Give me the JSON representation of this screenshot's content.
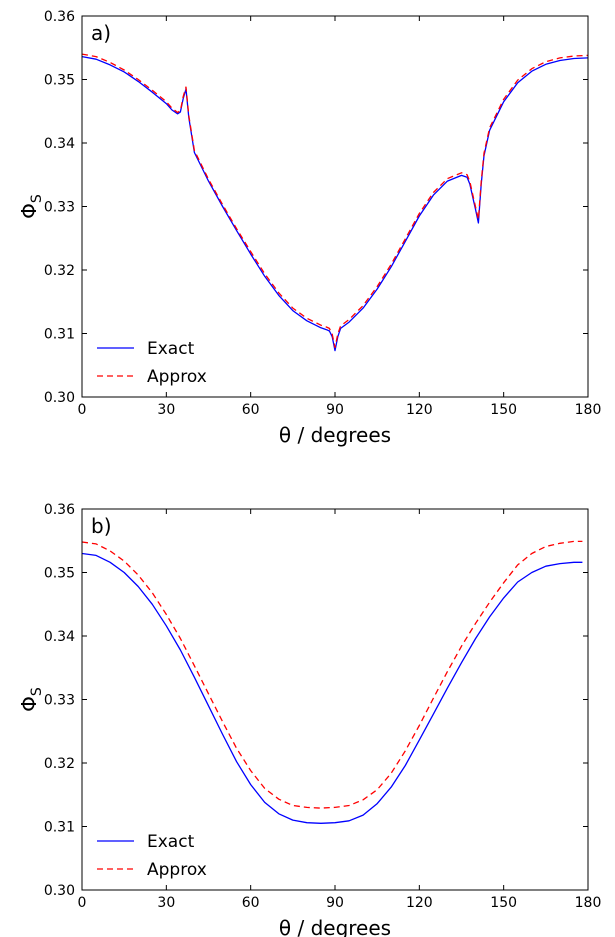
{
  "colors": {
    "exact": "#0000ff",
    "approx": "#ff0000",
    "axes": "#000000",
    "background": "#ffffff"
  },
  "chart_data": [
    {
      "type": "line",
      "panel_label": "a)",
      "xlabel": "θ / degrees",
      "ylabel": "ΦS",
      "xlim": [
        0,
        180
      ],
      "ylim": [
        0.3,
        0.36
      ],
      "xticks": [
        0,
        30,
        60,
        90,
        120,
        150,
        180
      ],
      "xtick_labels": [
        "0",
        "30",
        "60",
        "90",
        "120",
        "150",
        "180"
      ],
      "yticks": [
        0.3,
        0.31,
        0.32,
        0.33,
        0.34,
        0.35,
        0.36
      ],
      "ytick_labels": [
        "0.30",
        "0.31",
        "0.32",
        "0.33",
        "0.34",
        "0.35",
        "0.36"
      ],
      "grid": false,
      "legend_position": "bottom-left",
      "series": [
        {
          "name": "Exact",
          "style": "solid",
          "x": [
            0,
            5,
            10,
            15,
            20,
            25,
            30,
            32,
            34,
            35,
            36,
            37,
            38,
            40,
            45,
            50,
            55,
            60,
            65,
            70,
            75,
            80,
            85,
            87,
            88,
            89,
            90,
            91,
            92,
            95,
            100,
            105,
            110,
            115,
            120,
            125,
            130,
            135,
            137,
            138,
            139,
            140,
            141,
            142,
            143,
            145,
            150,
            155,
            160,
            165,
            170,
            175,
            180
          ],
          "y": [
            0.3536,
            0.3532,
            0.3523,
            0.3512,
            0.3497,
            0.348,
            0.3462,
            0.3452,
            0.3446,
            0.3449,
            0.347,
            0.3485,
            0.344,
            0.3385,
            0.334,
            0.33,
            0.3262,
            0.3225,
            0.319,
            0.316,
            0.3136,
            0.312,
            0.3109,
            0.3106,
            0.3104,
            0.3095,
            0.3073,
            0.3095,
            0.3108,
            0.3118,
            0.314,
            0.317,
            0.3205,
            0.3245,
            0.3285,
            0.3318,
            0.334,
            0.3349,
            0.3346,
            0.3335,
            0.3315,
            0.3295,
            0.3274,
            0.3335,
            0.338,
            0.342,
            0.3465,
            0.3495,
            0.3513,
            0.3524,
            0.353,
            0.3533,
            0.3534
          ]
        },
        {
          "name": "Approx",
          "style": "dashed",
          "x": [
            0,
            5,
            10,
            15,
            20,
            25,
            30,
            32,
            34,
            35,
            36,
            37,
            38,
            40,
            45,
            50,
            55,
            60,
            65,
            70,
            75,
            80,
            85,
            87,
            88,
            89,
            90,
            91,
            92,
            95,
            100,
            105,
            110,
            115,
            120,
            125,
            130,
            135,
            137,
            138,
            139,
            140,
            141,
            142,
            143,
            145,
            150,
            155,
            160,
            165,
            170,
            175,
            180
          ],
          "y": [
            0.354,
            0.3536,
            0.3527,
            0.3515,
            0.35,
            0.3483,
            0.3465,
            0.3455,
            0.3448,
            0.3451,
            0.3473,
            0.3488,
            0.3443,
            0.3388,
            0.3343,
            0.3303,
            0.3265,
            0.3229,
            0.3194,
            0.3164,
            0.314,
            0.3124,
            0.3113,
            0.311,
            0.3108,
            0.3099,
            0.3078,
            0.3099,
            0.3112,
            0.3122,
            0.3144,
            0.3174,
            0.3209,
            0.3249,
            0.3289,
            0.3322,
            0.3344,
            0.3353,
            0.335,
            0.3339,
            0.3319,
            0.3299,
            0.328,
            0.3339,
            0.3384,
            0.3424,
            0.3469,
            0.3499,
            0.3517,
            0.3528,
            0.3534,
            0.3537,
            0.3538
          ]
        }
      ]
    },
    {
      "type": "line",
      "panel_label": "b)",
      "xlabel": "θ / degrees",
      "ylabel": "ΦS",
      "xlim": [
        0,
        180
      ],
      "ylim": [
        0.3,
        0.36
      ],
      "xticks": [
        0,
        30,
        60,
        90,
        120,
        150,
        180
      ],
      "xtick_labels": [
        "0",
        "30",
        "60",
        "90",
        "120",
        "150",
        "180"
      ],
      "yticks": [
        0.3,
        0.31,
        0.32,
        0.33,
        0.34,
        0.35,
        0.36
      ],
      "ytick_labels": [
        "0.30",
        "0.31",
        "0.32",
        "0.33",
        "0.34",
        "0.35",
        "0.36"
      ],
      "grid": false,
      "legend_position": "bottom-left",
      "series": [
        {
          "name": "Exact",
          "style": "solid",
          "x": [
            0,
            5,
            10,
            15,
            20,
            25,
            30,
            35,
            40,
            45,
            50,
            55,
            60,
            65,
            70,
            75,
            80,
            85,
            90,
            95,
            100,
            105,
            110,
            115,
            120,
            125,
            130,
            135,
            140,
            145,
            150,
            155,
            160,
            165,
            170,
            175,
            178
          ],
          "y": [
            0.353,
            0.3527,
            0.3516,
            0.35,
            0.3478,
            0.345,
            0.3416,
            0.3378,
            0.3335,
            0.329,
            0.3245,
            0.3202,
            0.3166,
            0.3138,
            0.312,
            0.311,
            0.3106,
            0.3105,
            0.3106,
            0.3109,
            0.3118,
            0.3136,
            0.3162,
            0.3196,
            0.3236,
            0.3277,
            0.3318,
            0.3358,
            0.3396,
            0.343,
            0.346,
            0.3485,
            0.35,
            0.351,
            0.3514,
            0.3516,
            0.3516
          ]
        },
        {
          "name": "Approx",
          "style": "dashed",
          "x": [
            0,
            5,
            10,
            15,
            20,
            25,
            30,
            35,
            40,
            45,
            50,
            55,
            60,
            65,
            70,
            75,
            80,
            85,
            90,
            95,
            100,
            105,
            110,
            115,
            120,
            125,
            130,
            135,
            140,
            145,
            150,
            155,
            160,
            165,
            170,
            175,
            178
          ],
          "y": [
            0.3548,
            0.3545,
            0.3534,
            0.3518,
            0.3496,
            0.3468,
            0.3434,
            0.3396,
            0.3353,
            0.3309,
            0.3265,
            0.3223,
            0.3188,
            0.316,
            0.3143,
            0.3133,
            0.313,
            0.3129,
            0.313,
            0.3133,
            0.3142,
            0.3158,
            0.3184,
            0.3219,
            0.3259,
            0.3302,
            0.3344,
            0.3384,
            0.342,
            0.3453,
            0.3484,
            0.3512,
            0.353,
            0.3541,
            0.3546,
            0.3549,
            0.3549
          ]
        }
      ]
    }
  ]
}
